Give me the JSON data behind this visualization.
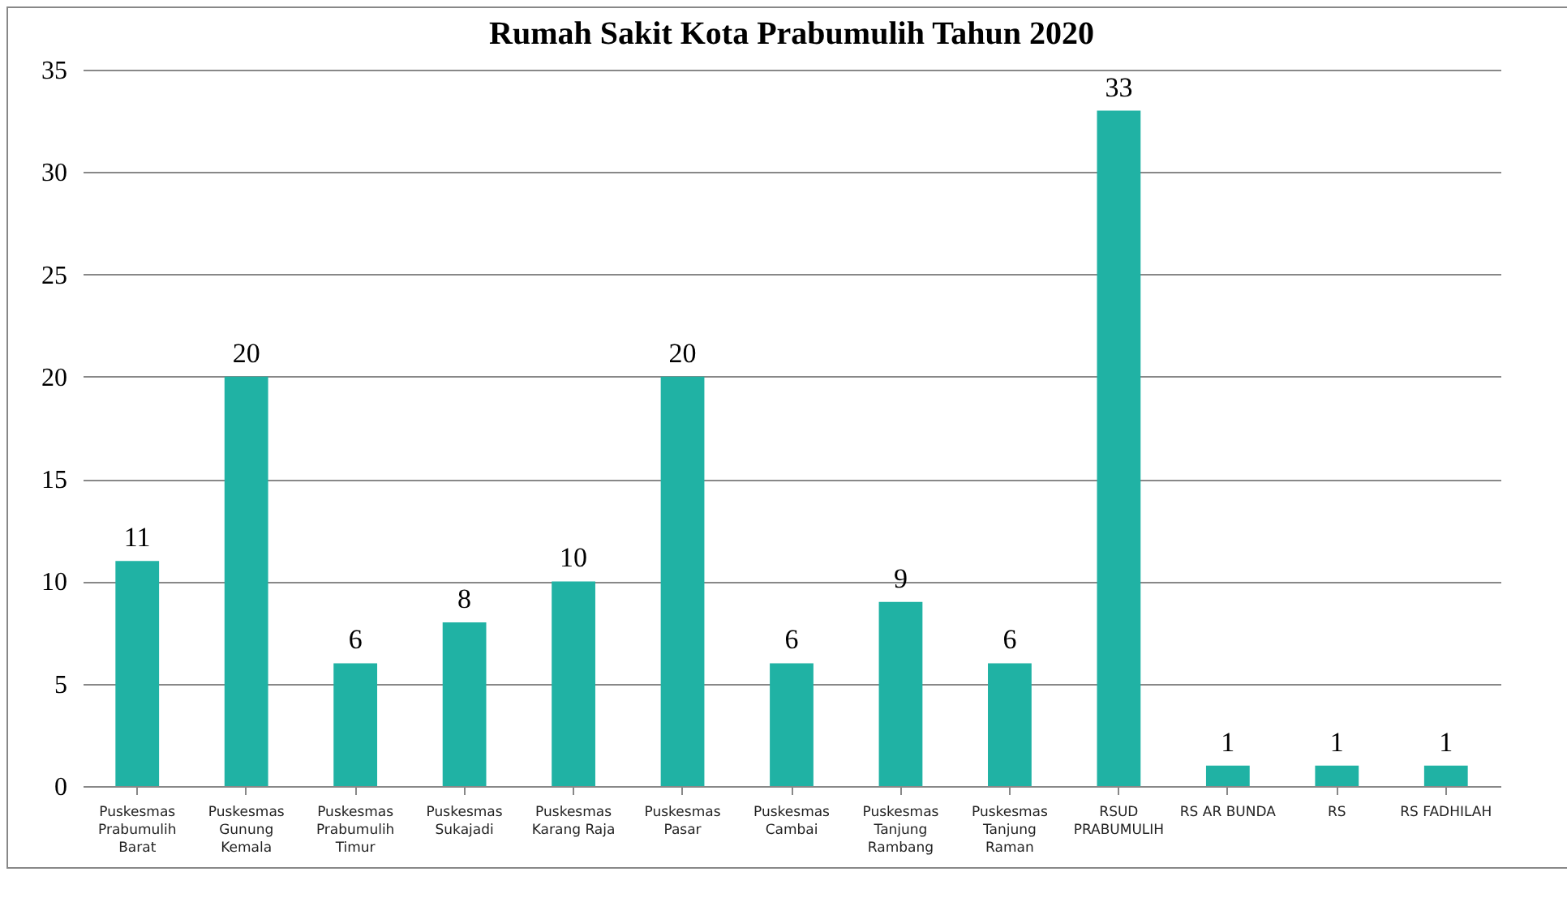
{
  "chart_data": {
    "type": "bar",
    "title": "Rumah Sakit Kota Prabumulih Tahun 2020",
    "categories": [
      "Puskesmas Prabumulih Barat",
      "Puskesmas Gunung Kemala",
      "Puskesmas Prabumulih Timur",
      "Puskesmas Sukajadi",
      "Puskesmas Karang Raja",
      "Puskesmas Pasar",
      "Puskesmas Cambai",
      "Puskesmas Tanjung Rambang",
      "Puskesmas Tanjung Raman",
      "RSUD PRABUMULIH",
      "RS AR BUNDA",
      "RS",
      "RS FADHILAH"
    ],
    "values": [
      11,
      20,
      6,
      8,
      10,
      20,
      6,
      9,
      6,
      33,
      1,
      1,
      1
    ],
    "color": "#20b2a4",
    "ylim": [
      0,
      35
    ],
    "yticks": [
      0,
      5,
      10,
      15,
      20,
      25,
      30,
      35
    ],
    "grid": true,
    "data_labels": true
  }
}
